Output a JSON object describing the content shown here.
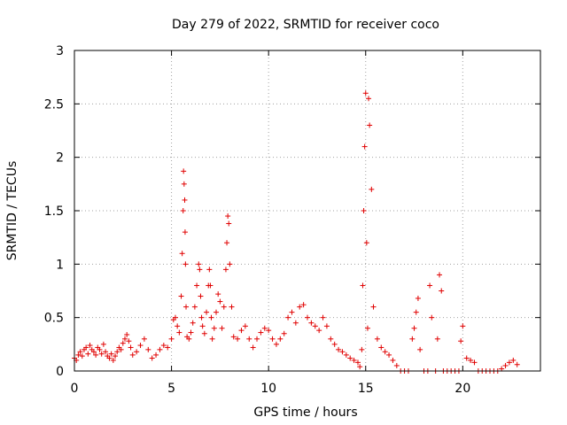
{
  "chart_data": {
    "type": "scatter",
    "title": "Day 279 of 2022, SRMTID for receiver coco",
    "xlabel": "GPS time / hours",
    "ylabel": "SRMTID / TECUs",
    "xlim": [
      0,
      24
    ],
    "ylim": [
      0,
      3
    ],
    "xticks": [
      0,
      5,
      10,
      15,
      20
    ],
    "xtick_labels": [
      "0",
      "5",
      "10",
      "15",
      "20"
    ],
    "yticks": [
      0,
      0.5,
      1,
      1.5,
      2,
      2.5,
      3
    ],
    "ytick_labels": [
      "0",
      "0.5",
      "1",
      "1.5",
      "2",
      "2.5",
      "3"
    ],
    "grid": true,
    "marker": "+",
    "color": "#e00000",
    "series": [
      {
        "name": "SRMTID",
        "x": [
          0.0,
          0.1,
          0.2,
          0.3,
          0.4,
          0.5,
          0.6,
          0.7,
          0.8,
          0.9,
          1.0,
          1.1,
          1.2,
          1.3,
          1.4,
          1.5,
          1.6,
          1.7,
          1.8,
          1.9,
          2.0,
          2.1,
          2.2,
          2.3,
          2.4,
          2.5,
          2.6,
          2.7,
          2.8,
          2.9,
          3.0,
          3.2,
          3.4,
          3.6,
          3.8,
          4.0,
          4.2,
          4.4,
          4.6,
          4.8,
          5.0,
          5.1,
          5.2,
          5.3,
          5.4,
          5.5,
          5.55,
          5.6,
          5.62,
          5.65,
          5.68,
          5.7,
          5.72,
          5.75,
          5.8,
          5.9,
          6.0,
          6.1,
          6.2,
          6.3,
          6.4,
          6.45,
          6.5,
          6.55,
          6.6,
          6.7,
          6.8,
          6.9,
          6.95,
          7.0,
          7.05,
          7.1,
          7.2,
          7.3,
          7.4,
          7.5,
          7.6,
          7.7,
          7.8,
          7.85,
          7.9,
          7.95,
          8.0,
          8.1,
          8.2,
          8.4,
          8.6,
          8.8,
          9.0,
          9.2,
          9.4,
          9.6,
          9.8,
          10.0,
          10.2,
          10.4,
          10.6,
          10.8,
          11.0,
          11.2,
          11.4,
          11.6,
          11.8,
          12.0,
          12.2,
          12.4,
          12.6,
          12.8,
          13.0,
          13.2,
          13.4,
          13.6,
          13.8,
          14.0,
          14.2,
          14.4,
          14.6,
          14.7,
          14.8,
          14.85,
          14.9,
          14.95,
          15.0,
          15.05,
          15.1,
          15.15,
          15.2,
          15.3,
          15.4,
          15.6,
          15.8,
          16.0,
          16.2,
          16.4,
          16.6,
          16.8,
          17.0,
          17.2,
          17.4,
          17.5,
          17.6,
          17.7,
          17.8,
          18.0,
          18.2,
          18.3,
          18.4,
          18.6,
          18.7,
          18.8,
          18.9,
          19.0,
          19.2,
          19.4,
          19.6,
          19.8,
          19.9,
          20.0,
          20.2,
          20.4,
          20.6,
          20.8,
          21.0,
          21.2,
          21.4,
          21.6,
          21.8,
          22.0,
          22.2,
          22.4,
          22.6,
          22.8
        ],
        "y": [
          0.12,
          0.1,
          0.15,
          0.18,
          0.14,
          0.2,
          0.22,
          0.16,
          0.24,
          0.2,
          0.18,
          0.15,
          0.22,
          0.2,
          0.16,
          0.25,
          0.18,
          0.14,
          0.12,
          0.16,
          0.1,
          0.14,
          0.18,
          0.22,
          0.2,
          0.26,
          0.3,
          0.34,
          0.28,
          0.22,
          0.15,
          0.18,
          0.24,
          0.3,
          0.2,
          0.12,
          0.15,
          0.2,
          0.24,
          0.22,
          0.3,
          0.48,
          0.5,
          0.42,
          0.36,
          0.7,
          1.1,
          1.5,
          1.87,
          1.75,
          1.6,
          1.3,
          1.0,
          0.6,
          0.32,
          0.3,
          0.36,
          0.45,
          0.6,
          0.8,
          1.0,
          0.95,
          0.7,
          0.5,
          0.42,
          0.35,
          0.55,
          0.8,
          0.95,
          0.8,
          0.5,
          0.3,
          0.4,
          0.55,
          0.72,
          0.65,
          0.4,
          0.6,
          0.95,
          1.2,
          1.45,
          1.38,
          1.0,
          0.6,
          0.32,
          0.3,
          0.38,
          0.42,
          0.3,
          0.22,
          0.3,
          0.36,
          0.4,
          0.38,
          0.3,
          0.25,
          0.3,
          0.35,
          0.5,
          0.55,
          0.45,
          0.6,
          0.62,
          0.5,
          0.45,
          0.42,
          0.38,
          0.5,
          0.42,
          0.3,
          0.25,
          0.2,
          0.18,
          0.15,
          0.12,
          0.1,
          0.08,
          0.04,
          0.2,
          0.8,
          1.5,
          2.1,
          2.6,
          1.2,
          0.4,
          2.55,
          2.3,
          1.7,
          0.6,
          0.3,
          0.22,
          0.18,
          0.15,
          0.1,
          0.05,
          0.0,
          0.0,
          0.0,
          0.3,
          0.4,
          0.55,
          0.68,
          0.2,
          0.0,
          0.0,
          0.8,
          0.5,
          0.0,
          0.3,
          0.9,
          0.75,
          0.0,
          0.0,
          0.0,
          0.0,
          0.0,
          0.28,
          0.42,
          0.12,
          0.1,
          0.08,
          0.0,
          0.0,
          0.0,
          0.0,
          0.0,
          0.0,
          0.02,
          0.05,
          0.08,
          0.1,
          0.06
        ]
      }
    ]
  }
}
